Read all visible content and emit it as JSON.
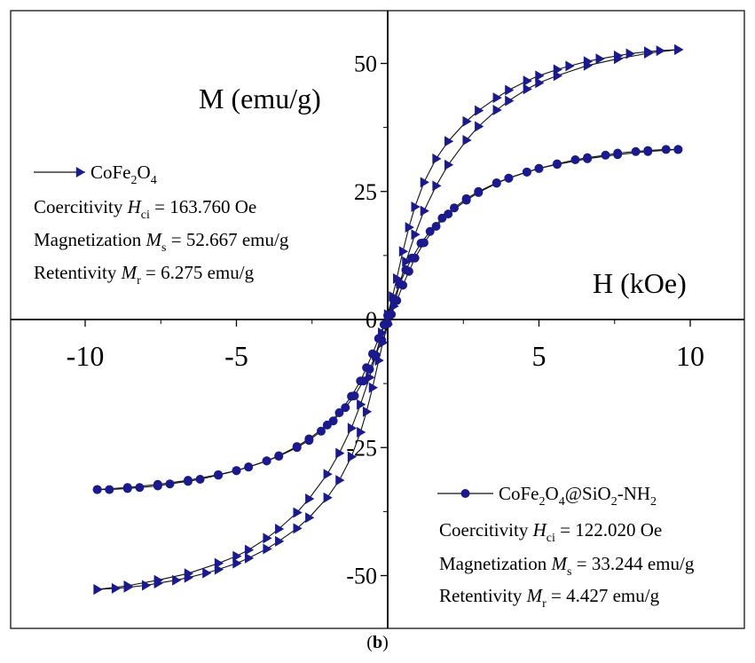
{
  "chart_data": {
    "type": "scatter",
    "xlabel": "H (kOe)",
    "ylabel": "M (emu/g)",
    "xlim": [
      -12.5,
      12.5
    ],
    "ylim": [
      -62,
      64
    ],
    "x_ticks": [
      "-10",
      "-5",
      "5",
      "10"
    ],
    "x_tick_values": [
      -10,
      -5,
      5,
      10
    ],
    "y_ticks": [
      "50",
      "25",
      "0",
      "-25",
      "-50"
    ],
    "y_tick_values": [
      50,
      25,
      0,
      -25,
      -50
    ],
    "grid": false,
    "series": [
      {
        "name": "CoFe2O4",
        "marker": "triangle-right",
        "color": "#1a1a8c",
        "coercivity_Oe": 163.76,
        "Ms_emu_g": 52.667,
        "Mr_emu_g": 6.275,
        "branch_up_x": [
          -9.6,
          -8.6,
          -7.6,
          -6.6,
          -5.6,
          -5.0,
          -4.6,
          -4.0,
          -3.6,
          -3.0,
          -2.6,
          -2.0,
          -1.6,
          -1.2,
          -0.9,
          -0.6,
          -0.4,
          -0.2,
          0.0,
          0.16,
          0.3,
          0.5,
          0.7,
          0.9,
          1.2,
          1.6,
          2.0,
          2.6,
          3.0,
          3.6,
          4.0,
          4.6,
          5.0,
          5.6,
          6.0,
          6.6,
          7.0,
          7.6,
          8.0,
          8.6,
          9.0,
          9.6
        ],
        "branch_up_y": [
          -52.7,
          -52.0,
          -50.9,
          -49.6,
          -47.6,
          -46.2,
          -45.0,
          -42.7,
          -40.9,
          -37.7,
          -35.0,
          -30.2,
          -26.1,
          -21.2,
          -16.6,
          -11.3,
          -7.0,
          -2.6,
          1.0,
          4.5,
          8.0,
          13.3,
          18.0,
          22.0,
          26.8,
          31.4,
          34.8,
          38.7,
          40.8,
          43.3,
          44.8,
          46.6,
          47.6,
          48.8,
          49.5,
          50.4,
          50.9,
          51.5,
          51.9,
          52.3,
          52.5,
          52.7
        ],
        "branch_down_x": [
          9.6,
          8.6,
          7.6,
          6.6,
          5.6,
          5.0,
          4.6,
          4.0,
          3.6,
          3.0,
          2.6,
          2.0,
          1.6,
          1.2,
          0.9,
          0.6,
          0.4,
          0.2,
          0.0,
          -0.16,
          -0.3,
          -0.5,
          -0.7,
          -0.9,
          -1.2,
          -1.6,
          -2.0,
          -2.6,
          -3.0,
          -3.6,
          -4.0,
          -4.6,
          -5.0,
          -5.6,
          -6.0,
          -6.6,
          -7.0,
          -7.6,
          -8.0,
          -8.6,
          -9.0,
          -9.6
        ],
        "branch_down_y": [
          52.7,
          52.0,
          50.9,
          49.6,
          47.6,
          46.2,
          45.0,
          42.7,
          40.9,
          37.7,
          35.0,
          30.2,
          26.1,
          21.2,
          16.6,
          11.3,
          7.0,
          2.6,
          -1.0,
          -4.5,
          -8.0,
          -13.3,
          -18.0,
          -22.0,
          -26.8,
          -31.4,
          -34.8,
          -38.7,
          -40.8,
          -43.3,
          -44.8,
          -46.6,
          -47.6,
          -48.8,
          -49.5,
          -50.4,
          -50.9,
          -51.5,
          -51.9,
          -52.3,
          -52.5,
          -52.7
        ]
      },
      {
        "name": "CoFe2O4@SiO2-NH2",
        "marker": "circle",
        "color": "#1a1a8c",
        "coercivity_Oe": 122.02,
        "Ms_emu_g": 33.244,
        "Mr_emu_g": 4.427,
        "branch_up_x": [
          -9.6,
          -8.6,
          -7.6,
          -6.6,
          -5.6,
          -5.0,
          -4.6,
          -4.0,
          -3.6,
          -3.0,
          -2.6,
          -2.2,
          -1.8,
          -1.4,
          -1.1,
          -0.8,
          -0.6,
          -0.4,
          -0.2,
          0.0,
          0.12,
          0.3,
          0.5,
          0.7,
          0.9,
          1.2,
          1.6,
          2.0,
          2.6,
          3.0,
          3.6,
          4.0,
          4.6,
          5.0,
          5.6,
          6.2,
          6.6,
          7.2,
          7.6,
          8.2,
          8.6,
          9.2,
          9.6
        ],
        "branch_up_y": [
          -33.2,
          -32.8,
          -32.2,
          -31.4,
          -30.3,
          -29.5,
          -28.8,
          -27.6,
          -26.7,
          -25.0,
          -23.6,
          -21.8,
          -19.8,
          -17.2,
          -14.9,
          -12.0,
          -9.7,
          -7.0,
          -4.0,
          -0.8,
          1.0,
          3.7,
          6.7,
          9.4,
          12.0,
          15.0,
          18.2,
          20.6,
          23.3,
          24.8,
          26.6,
          27.6,
          28.8,
          29.5,
          30.4,
          31.2,
          31.6,
          32.1,
          32.5,
          32.8,
          33.0,
          33.2,
          33.2
        ],
        "branch_down_x": [
          9.6,
          8.6,
          7.6,
          6.6,
          5.6,
          5.0,
          4.6,
          4.0,
          3.6,
          3.0,
          2.6,
          2.2,
          1.8,
          1.4,
          1.1,
          0.8,
          0.6,
          0.4,
          0.2,
          0.0,
          -0.12,
          -0.3,
          -0.5,
          -0.7,
          -0.9,
          -1.2,
          -1.6,
          -2.0,
          -2.6,
          -3.0,
          -3.6,
          -4.0,
          -4.6,
          -5.0,
          -5.6,
          -6.2,
          -6.6,
          -7.2,
          -7.6,
          -8.2,
          -8.6,
          -9.2,
          -9.6
        ],
        "branch_down_y": [
          33.2,
          32.8,
          32.2,
          31.4,
          30.3,
          29.5,
          28.8,
          27.6,
          26.7,
          25.0,
          23.6,
          21.8,
          19.8,
          17.2,
          14.9,
          12.0,
          9.7,
          7.0,
          4.0,
          0.8,
          -1.0,
          -3.7,
          -6.7,
          -9.4,
          -12.0,
          -15.0,
          -18.2,
          -20.6,
          -23.3,
          -24.8,
          -26.6,
          -27.6,
          -28.8,
          -29.5,
          -30.4,
          -31.2,
          -31.6,
          -32.1,
          -32.5,
          -32.8,
          -33.0,
          -33.2,
          -33.2
        ]
      }
    ],
    "legends": [
      {
        "position": "top-left",
        "series": "CoFe2O4",
        "label_parts": [
          "CoFe",
          "2",
          "O",
          "4"
        ],
        "coercivity": {
          "prefix": "Coercitivity ",
          "sym": "H",
          "sub": "ci",
          "rest": " = 163.760 Oe"
        },
        "magnetization": {
          "prefix": "Magnetization ",
          "sym": "M",
          "sub": "s",
          "rest": " = 52.667 emu/g"
        },
        "retentivity": {
          "prefix": "Retentivity ",
          "sym": "M",
          "sub": "r",
          "rest": " = 6.275 emu/g"
        }
      },
      {
        "position": "bottom-right",
        "series": "CoFe2O4@SiO2-NH2",
        "label_parts": [
          "CoFe",
          "2",
          "O",
          "4",
          "@SiO",
          "2",
          "-NH",
          "2"
        ],
        "coercivity": {
          "prefix": "Coercitivity ",
          "sym": "H",
          "sub": "ci",
          "rest": " = 122.020 Oe"
        },
        "magnetization": {
          "prefix": "Magnetization ",
          "sym": "M",
          "sub": "s",
          "rest": " = 33.244 emu/g"
        },
        "retentivity": {
          "prefix": "Retentivity ",
          "sym": "M",
          "sub": "r",
          "rest": " = 4.427 emu/g"
        }
      }
    ]
  },
  "caption": {
    "open": "(",
    "letter": "b",
    "close": ")"
  }
}
